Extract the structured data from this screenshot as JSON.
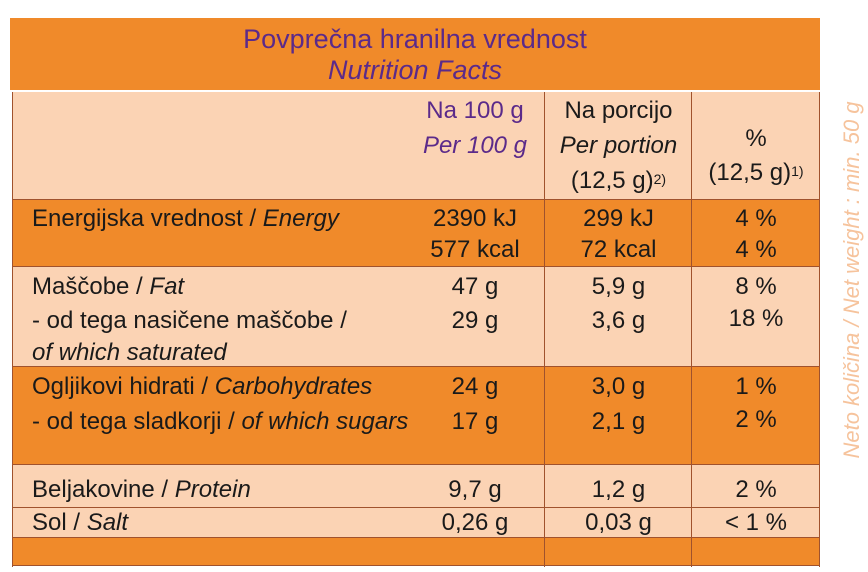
{
  "title": {
    "sl": "Povprečna hranilna vrednost",
    "en": "Nutrition Facts"
  },
  "headers": {
    "per100": {
      "sl": "Na 100 g",
      "en": "Per 100 g"
    },
    "perportion": {
      "sl": "Na porcijo",
      "en": "Per portion",
      "size": "(12,5 g)",
      "note": "2)"
    },
    "percent": {
      "symbol": "%",
      "size": "(12,5 g)",
      "note": "1)"
    }
  },
  "rows": {
    "energy": {
      "sl": "Energijska vrednost",
      "en": "Energy",
      "per100_kj": "2390 kJ",
      "per100_kcal": "577 kcal",
      "portion_kj": "299 kJ",
      "portion_kcal": "72 kcal",
      "pct_kj": "4 %",
      "pct_kcal": "4 %"
    },
    "fat": {
      "sl": "Maščobe",
      "en": "Fat",
      "per100": "47 g",
      "portion": "5,9 g",
      "pct": "8 %"
    },
    "saturated": {
      "sl": "- od tega nasičene maščobe /",
      "en": "of which saturated",
      "per100": "29 g",
      "portion": "3,6 g",
      "pct": "18 %"
    },
    "carbs": {
      "sl": "Ogljikovi hidrati",
      "en": "Carbohydrates",
      "per100": "24 g",
      "portion": "3,0 g",
      "pct": "1 %"
    },
    "sugars": {
      "sl": "- od tega sladkorji",
      "en": "of which sugars",
      "per100": "17 g",
      "portion": "2,1 g",
      "pct": "2 %"
    },
    "protein": {
      "sl": "Beljakovine",
      "en": "Protein",
      "per100": "9,7 g",
      "portion": "1,2 g",
      "pct": "2 %"
    },
    "salt": {
      "sl": "Sol",
      "en": "Salt",
      "per100": "0,26 g",
      "portion": "0,03 g",
      "pct": "< 1 %"
    }
  },
  "side_text": "Neto količina / Net weight : min. 50 g",
  "colors": {
    "orange": "#f08a2a",
    "peach": "#fbd3b4",
    "purple": "#5b2a8a",
    "border": "#a0522d"
  }
}
